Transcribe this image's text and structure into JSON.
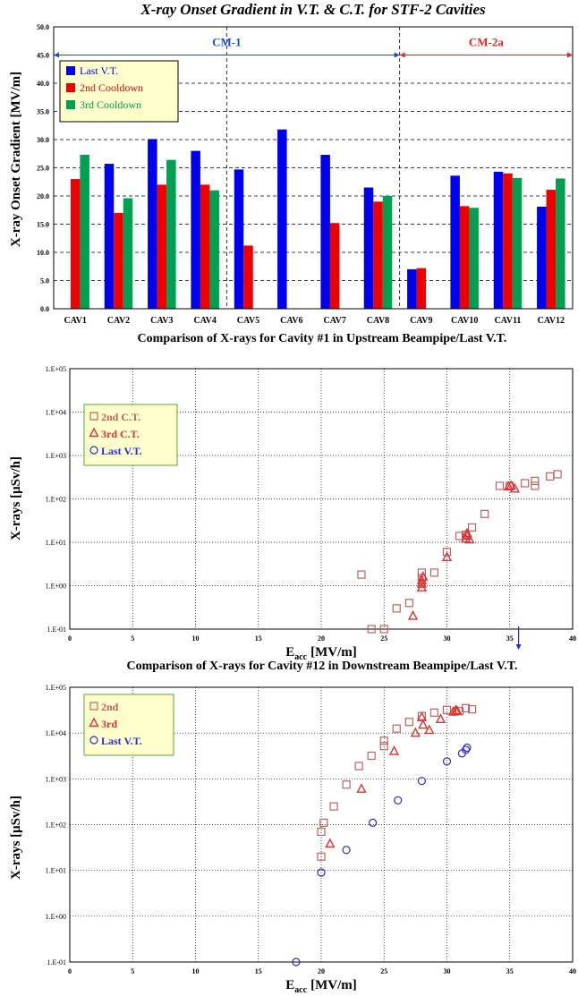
{
  "chart_data": [
    {
      "type": "bar",
      "title": "X-ray Onset Gradient in V.T. & C.T. for STF-2 Cavities",
      "ylabel": "X-ray Onset Gradient [MV/m]",
      "ylim": [
        0,
        50
      ],
      "ytick_labels": [
        "0.0",
        "5.0",
        "10.0",
        "15.0",
        "20.0",
        "25.0",
        "30.0",
        "35.0",
        "40.0",
        "45.0",
        "50.0"
      ],
      "grid": true,
      "legend_position": "upper-left",
      "categories": [
        "CAV1",
        "CAV2",
        "CAV3",
        "CAV4",
        "CAV5",
        "CAV6",
        "CAV7",
        "CAV8",
        "CAV9",
        "CAV10",
        "CAV11",
        "CAV12"
      ],
      "series": [
        {
          "name": "Last V.T.",
          "color": "#0000ee",
          "values": [
            null,
            25.7,
            30.1,
            28.0,
            24.7,
            31.8,
            27.3,
            21.5,
            7.0,
            23.6,
            24.3,
            18.1
          ]
        },
        {
          "name": "2nd Cooldown",
          "color": "#ee0000",
          "values": [
            23.0,
            17.0,
            22.0,
            22.0,
            11.2,
            null,
            15.2,
            19.0,
            7.2,
            18.2,
            24.0,
            21.1
          ]
        },
        {
          "name": "3rd Cooldown",
          "color": "#00a050",
          "values": [
            27.3,
            19.6,
            26.4,
            21.0,
            null,
            null,
            null,
            20.0,
            null,
            17.9,
            23.2,
            23.1
          ]
        }
      ],
      "annotations": [
        {
          "text": "CM-1",
          "color": "#1a47e0",
          "span": [
            0,
            8
          ]
        },
        {
          "text": "CM-2a",
          "color": "#ee2222",
          "span": [
            8,
            12
          ]
        }
      ]
    },
    {
      "type": "scatter",
      "title": "Comparison of X-rays for Cavity #1 in Upstream Beampipe/Last V.T.",
      "xlabel": "E",
      "xlabel_sub": "acc",
      "xlabel_unit": "[MV/m]",
      "ylabel": "X-rays [μSv/h]",
      "xlim": [
        0,
        40
      ],
      "ylim_log": [
        0.1,
        100000
      ],
      "xtick_labels": [
        "0",
        "5",
        "10",
        "15",
        "20",
        "25",
        "30",
        "35",
        "40"
      ],
      "ytick_labels": [
        "1.E-01",
        "1.E+00",
        "1.E+01",
        "1.E+02",
        "1.E+03",
        "1.E+04",
        "1.E+05"
      ],
      "grid": true,
      "legend_position": "upper-left",
      "series": [
        {
          "name": "2nd C.T.",
          "marker": "square",
          "color": "#c06060",
          "points": [
            [
              23.2,
              1.8
            ],
            [
              24.0,
              0.1
            ],
            [
              25.0,
              0.1
            ],
            [
              26.0,
              0.3
            ],
            [
              27.0,
              0.4
            ],
            [
              28.0,
              1.5
            ],
            [
              28.0,
              2.0
            ],
            [
              29.0,
              2.0
            ],
            [
              30.0,
              6.0
            ],
            [
              31.0,
              14.0
            ],
            [
              31.5,
              15.0
            ],
            [
              32.0,
              22.0
            ],
            [
              33.0,
              45.0
            ],
            [
              34.2,
              200.0
            ],
            [
              35.0,
              200.0
            ],
            [
              36.2,
              230.0
            ],
            [
              37.0,
              200.0
            ],
            [
              37.0,
              260.0
            ],
            [
              38.2,
              330.0
            ],
            [
              38.8,
              370.0
            ]
          ]
        },
        {
          "name": "3rd C.T.",
          "marker": "triangle",
          "color": "#e03030",
          "points": [
            [
              27.3,
              0.2
            ],
            [
              28.0,
              0.9
            ],
            [
              28.0,
              1.1
            ],
            [
              28.0,
              1.3
            ],
            [
              28.1,
              1.6
            ],
            [
              30.0,
              4.5
            ],
            [
              31.5,
              12.0
            ],
            [
              31.6,
              14.0
            ],
            [
              31.6,
              16.0
            ],
            [
              31.8,
              11.5
            ],
            [
              34.9,
              190.0
            ],
            [
              35.1,
              200.0
            ],
            [
              35.4,
              170.0
            ]
          ]
        },
        {
          "name": "Last V.T.",
          "marker": "circle",
          "color": "#2828e0",
          "points": []
        }
      ],
      "marker_arrow": {
        "x": 35.7,
        "color": "#2828e0"
      }
    },
    {
      "type": "scatter",
      "title": "Comparison of X-rays for Cavity #12 in Downstream Beampipe/Last V.T.",
      "xlabel": "E",
      "xlabel_sub": "acc",
      "xlabel_unit": "[MV/m]",
      "ylabel": "X-rays [μSv/h]",
      "xlim": [
        0,
        40
      ],
      "ylim_log": [
        0.1,
        100000
      ],
      "xtick_labels": [
        "0",
        "5",
        "10",
        "15",
        "20",
        "25",
        "30",
        "35",
        "40"
      ],
      "ytick_labels": [
        "1.E-01",
        "1.E+00",
        "1.E+01",
        "1.E+02",
        "1.E+03",
        "1.E+04",
        "1.E+05"
      ],
      "grid": true,
      "legend_position": "upper-left",
      "series": [
        {
          "name": "2nd",
          "marker": "square",
          "color": "#c06060",
          "points": [
            [
              20.0,
              20.0
            ],
            [
              20.0,
              70.0
            ],
            [
              20.2,
              110.0
            ],
            [
              21.0,
              250.0
            ],
            [
              22.0,
              750.0
            ],
            [
              23.0,
              1900.0
            ],
            [
              24.0,
              3200.0
            ],
            [
              25.0,
              5200.0
            ],
            [
              25.0,
              6800.0
            ],
            [
              26.0,
              12500.0
            ],
            [
              27.0,
              17500.0
            ],
            [
              28.0,
              23500.0
            ],
            [
              29.0,
              28000.0
            ],
            [
              30.0,
              32000.0
            ],
            [
              31.0,
              30000.0
            ],
            [
              31.5,
              35000.0
            ],
            [
              32.0,
              33000.0
            ]
          ]
        },
        {
          "name": "3rd",
          "marker": "triangle",
          "color": "#e03030",
          "points": [
            [
              20.7,
              38.0
            ],
            [
              23.2,
              600.0
            ],
            [
              25.8,
              4000.0
            ],
            [
              27.5,
              10000.0
            ],
            [
              28.0,
              22000.0
            ],
            [
              28.1,
              15000.0
            ],
            [
              28.6,
              11500.0
            ],
            [
              29.5,
              20000.0
            ],
            [
              30.5,
              29000.0
            ],
            [
              30.7,
              31000.0
            ],
            [
              30.8,
              30500.0
            ]
          ]
        },
        {
          "name": "Last V.T.",
          "marker": "circle",
          "color": "#2828e0",
          "points": [
            [
              18.0,
              0.1
            ],
            [
              20.0,
              9.0
            ],
            [
              22.0,
              28.0
            ],
            [
              24.1,
              110.0
            ],
            [
              26.1,
              340.0
            ],
            [
              28.0,
              900.0
            ],
            [
              30.0,
              2400.0
            ],
            [
              31.2,
              3600.0
            ],
            [
              31.5,
              4300.0
            ],
            [
              31.6,
              4800.0
            ]
          ]
        }
      ]
    }
  ]
}
